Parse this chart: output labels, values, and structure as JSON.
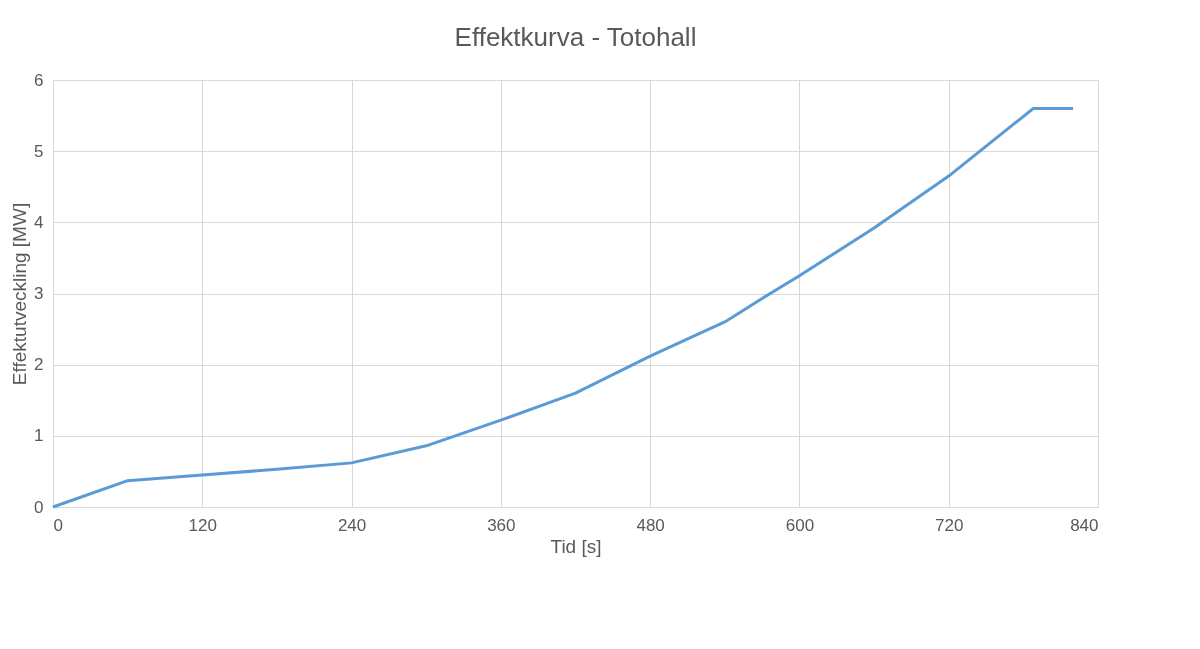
{
  "chart_data": {
    "type": "line",
    "title": "Effektkurva - Totohall",
    "xlabel": "Tid [s]",
    "ylabel": "Effektutveckling [MW]",
    "x": [
      0,
      60,
      120,
      180,
      240,
      300,
      360,
      420,
      480,
      540,
      570,
      600,
      660,
      720,
      788,
      820
    ],
    "series": [
      {
        "color": "#5b9bd5",
        "values": [
          0,
          0.37,
          0.45,
          0.53,
          0.62,
          0.86,
          1.22,
          1.6,
          2.12,
          2.6,
          2.93,
          3.25,
          3.92,
          4.65,
          5.6,
          5.6
        ]
      }
    ],
    "xlim": [
      0,
      840
    ],
    "xticks": [
      0,
      120,
      240,
      360,
      480,
      600,
      720,
      840
    ],
    "ylim": [
      0,
      6
    ],
    "yticks": [
      0,
      1,
      2,
      3,
      4,
      5,
      6
    ],
    "grid": true,
    "marker": "none",
    "line_style": "solid"
  }
}
